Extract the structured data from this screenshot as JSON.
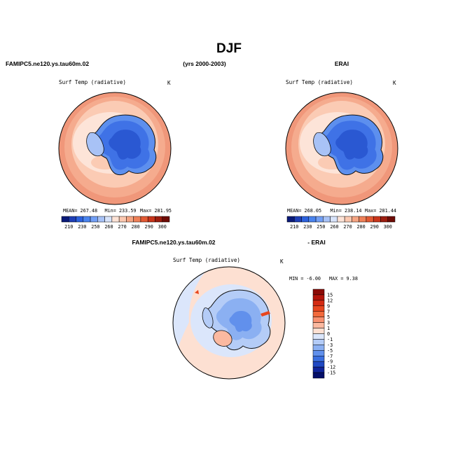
{
  "page": {
    "title": "DJF",
    "header_left": "FAMIPC5.ne120.ys.tau60m.02",
    "header_mid": "(yrs 2000-2003)",
    "header_right": "ERAI",
    "diff_header_left": "FAMIPC5.ne120.ys.tau60m.02",
    "diff_header_right": "- ERAI"
  },
  "chart_data": [
    {
      "type": "heatmap",
      "projection": "south-polar-stereographic",
      "subtitle": "Surf Temp (radiative)",
      "units": "K",
      "stats": {
        "mean": "MEAN= 267.48",
        "min": "Min= 233.59",
        "max": "Max= 281.95"
      },
      "colorbar": {
        "orientation": "horizontal",
        "ticks": [
          "210",
          "230",
          "250",
          "260",
          "270",
          "280",
          "290",
          "300"
        ],
        "colors": [
          "#0a1a78",
          "#1f3fb6",
          "#2d62dd",
          "#4a84ee",
          "#729ff5",
          "#a8c2f6",
          "#d7e3fa",
          "#fde3d6",
          "#fbc8b0",
          "#f5a583",
          "#ee8058",
          "#e25a34",
          "#c8351b",
          "#9c1e10",
          "#6e0c06"
        ]
      }
    },
    {
      "type": "heatmap",
      "projection": "south-polar-stereographic",
      "subtitle": "Surf Temp (radiative)",
      "units": "K",
      "stats": {
        "mean": "MEAN= 268.05",
        "min": "Min= 238.14",
        "max": "Max= 281.44"
      },
      "colorbar": {
        "orientation": "horizontal",
        "ticks": [
          "210",
          "230",
          "250",
          "260",
          "270",
          "280",
          "290",
          "300"
        ],
        "colors": [
          "#0a1a78",
          "#1f3fb6",
          "#2d62dd",
          "#4a84ee",
          "#729ff5",
          "#a8c2f6",
          "#d7e3fa",
          "#fde3d6",
          "#fbc8b0",
          "#f5a583",
          "#ee8058",
          "#e25a34",
          "#c8351b",
          "#9c1e10",
          "#6e0c06"
        ]
      }
    },
    {
      "type": "heatmap",
      "projection": "south-polar-stereographic",
      "subtitle": "Surf Temp (radiative)",
      "units": "K",
      "stats": {
        "min": "MIN =  -6.00",
        "max": "MAX =    9.38"
      },
      "colorbar": {
        "orientation": "vertical",
        "ticks": [
          "15",
          "12",
          "9",
          "7",
          "5",
          "3",
          "1",
          "0",
          "-1",
          "-3",
          "-5",
          "-7",
          "-9",
          "-12",
          "-15"
        ],
        "colors": [
          "#8b0a05",
          "#b3140a",
          "#d42a12",
          "#e8461f",
          "#f26a3c",
          "#f89070",
          "#fbb9a0",
          "#fde0d2",
          "#dbe6fb",
          "#b4ccf7",
          "#8bb0f2",
          "#6190ec",
          "#3b6fe0",
          "#2049c4",
          "#10249a",
          "#050f6a"
        ]
      }
    }
  ]
}
